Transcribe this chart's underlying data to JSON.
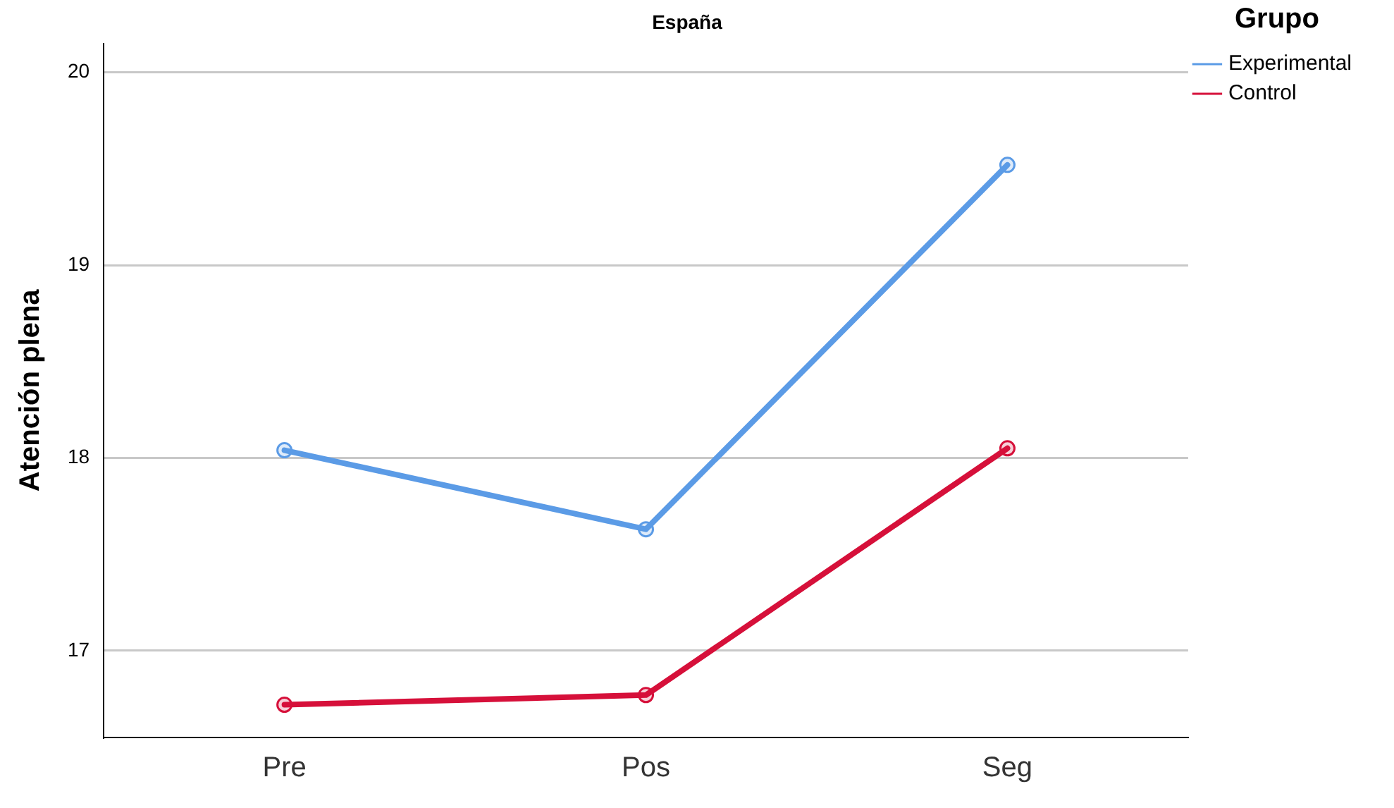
{
  "chart_data": {
    "type": "line",
    "title": "España",
    "ylabel": "Atención plena",
    "legend_title": "Grupo",
    "categories": [
      "Pre",
      "Pos",
      "Seg"
    ],
    "series": [
      {
        "name": "Experimental",
        "color": "#5b9be6",
        "values": [
          18.04,
          17.63,
          19.52
        ]
      },
      {
        "name": "Control",
        "color": "#d6103a",
        "values": [
          16.72,
          16.77,
          18.05
        ]
      }
    ],
    "ylim": [
      16.55,
      20.15
    ],
    "yticks": [
      17,
      18,
      19,
      20
    ],
    "grid": "y",
    "legend": "top right",
    "marker": "circle",
    "line_style": "solid"
  }
}
